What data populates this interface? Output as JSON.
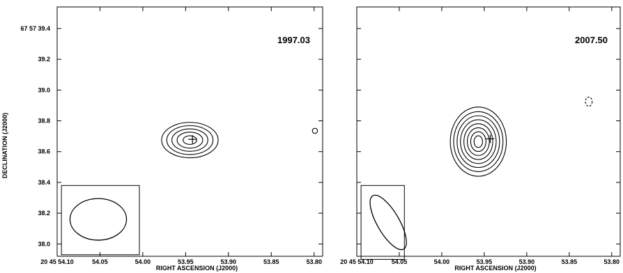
{
  "chart_data": [
    {
      "type": "contour",
      "epoch_label": "1997.03",
      "xlabel": "RIGHT ASCENSION (J2000)",
      "ylabel": "DECLINATION (J2000)",
      "xlim": [
        54.1,
        53.79
      ],
      "ylim": [
        37.92,
        39.54
      ],
      "x_ticks": [
        54.1,
        54.05,
        54.0,
        53.95,
        53.9,
        53.85,
        53.8
      ],
      "x_tick_labels": [
        "20 45 54.10",
        "54.05",
        "54.00",
        "53.95",
        "53.90",
        "53.85",
        "53.80"
      ],
      "y_ticks": [
        39.4,
        39.2,
        39.0,
        38.8,
        38.6,
        38.4,
        38.2,
        38.0
      ],
      "y_tick_labels": [
        "67 57 39.4",
        "39.2",
        "39.0",
        "38.8",
        "38.6",
        "38.4",
        "38.2",
        "38.0"
      ],
      "source_center": {
        "ra": 53.945,
        "dec": 38.675
      },
      "contours": [
        {
          "level": 1,
          "ra_halfwidth": 0.033,
          "dec_halfheight": 0.115
        },
        {
          "level": 2,
          "ra_halfwidth": 0.027,
          "dec_halfheight": 0.094
        },
        {
          "level": 3,
          "ra_halfwidth": 0.021,
          "dec_halfheight": 0.073
        },
        {
          "level": 4,
          "ra_halfwidth": 0.015,
          "dec_halfheight": 0.052
        },
        {
          "level": 5,
          "ra_halfwidth": 0.008,
          "dec_halfheight": 0.028
        }
      ],
      "secondary_contour": {
        "ra": 53.799,
        "dec": 38.735,
        "ra_halfwidth": 0.003,
        "dec_halfheight": 0.017,
        "dashed": false
      },
      "marker": {
        "ra": 53.942,
        "dec": 38.68
      },
      "beam": {
        "ra": 54.052,
        "dec": 38.16,
        "ra_halfwidth": 0.033,
        "dec_halfheight": 0.135,
        "angle": 0
      },
      "beam_box": {
        "ra_min": 54.095,
        "ra_max": 54.004,
        "dec_min": 37.93,
        "dec_max": 38.38
      }
    },
    {
      "type": "contour",
      "epoch_label": "2007.50",
      "xlabel": "RIGHT ASCENSION (J2000)",
      "ylabel": "",
      "xlim": [
        54.1,
        53.79
      ],
      "ylim": [
        37.92,
        39.54
      ],
      "x_ticks": [
        54.1,
        54.05,
        54.0,
        53.95,
        53.9,
        53.85,
        53.8
      ],
      "x_tick_labels": [
        "20 45 54.10",
        "54.05",
        "54.00",
        "53.95",
        "53.90",
        "53.85",
        "53.80"
      ],
      "y_ticks": [
        39.4,
        39.2,
        39.0,
        38.8,
        38.6,
        38.4,
        38.2,
        38.0
      ],
      "source_center": {
        "ra": 53.957,
        "dec": 38.665
      },
      "contours": [
        {
          "level": 1,
          "ra_halfwidth": 0.033,
          "dec_halfheight": 0.225
        },
        {
          "level": 2,
          "ra_halfwidth": 0.029,
          "dec_halfheight": 0.195
        },
        {
          "level": 3,
          "ra_halfwidth": 0.025,
          "dec_halfheight": 0.168
        },
        {
          "level": 4,
          "ra_halfwidth": 0.021,
          "dec_halfheight": 0.142
        },
        {
          "level": 5,
          "ra_halfwidth": 0.017,
          "dec_halfheight": 0.116
        },
        {
          "level": 6,
          "ra_halfwidth": 0.013,
          "dec_halfheight": 0.09
        },
        {
          "level": 7,
          "ra_halfwidth": 0.009,
          "dec_halfheight": 0.064
        },
        {
          "level": 8,
          "ra_halfwidth": 0.005,
          "dec_halfheight": 0.038
        }
      ],
      "secondary_contour": {
        "ra": 53.827,
        "dec": 38.925,
        "ra_halfwidth": 0.004,
        "dec_halfheight": 0.03,
        "dashed": true
      },
      "marker": {
        "ra": 53.943,
        "dec": 38.683
      },
      "beam": {
        "ra": 54.063,
        "dec": 38.14,
        "ra_halfwidth": 0.013,
        "dec_halfheight": 0.2,
        "angle": -30
      },
      "beam_box": {
        "ra_min": 54.095,
        "ra_max": 54.044,
        "dec_min": 37.9,
        "dec_max": 38.38
      }
    }
  ]
}
